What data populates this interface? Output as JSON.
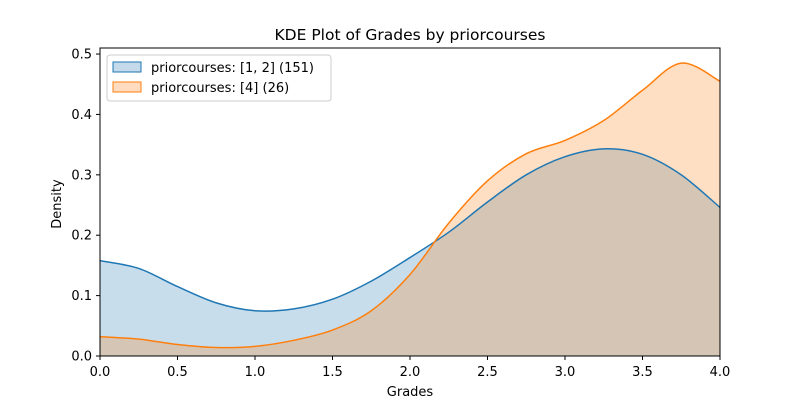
{
  "chart_data": {
    "type": "area",
    "title": "KDE Plot of Grades by priorcourses",
    "xlabel": "Grades",
    "ylabel": "Density",
    "xlim": [
      0.0,
      4.0
    ],
    "ylim": [
      0.0,
      0.51
    ],
    "xticks": [
      "0.0",
      "0.5",
      "1.0",
      "1.5",
      "2.0",
      "2.5",
      "3.0",
      "3.5",
      "4.0"
    ],
    "yticks": [
      "0.0",
      "0.1",
      "0.2",
      "0.3",
      "0.4",
      "0.5"
    ],
    "grid": false,
    "legend_position": "top-left",
    "x": [
      0.0,
      0.25,
      0.5,
      0.75,
      1.0,
      1.25,
      1.5,
      1.75,
      2.0,
      2.25,
      2.5,
      2.75,
      3.0,
      3.25,
      3.5,
      3.75,
      4.0
    ],
    "series": [
      {
        "name": "priorcourses: [1, 2] (151)",
        "color": "#1f77b4",
        "fill": "#c4d9ea",
        "values": [
          0.158,
          0.145,
          0.115,
          0.088,
          0.075,
          0.078,
          0.094,
          0.124,
          0.163,
          0.205,
          0.255,
          0.3,
          0.33,
          0.343,
          0.334,
          0.3,
          0.246
        ]
      },
      {
        "name": "priorcourses: [4] (26)",
        "color": "#ff7f0e",
        "fill": "#ffdbbf",
        "values": [
          0.032,
          0.028,
          0.019,
          0.014,
          0.016,
          0.026,
          0.043,
          0.075,
          0.135,
          0.22,
          0.29,
          0.335,
          0.357,
          0.39,
          0.44,
          0.485,
          0.455
        ]
      }
    ]
  }
}
